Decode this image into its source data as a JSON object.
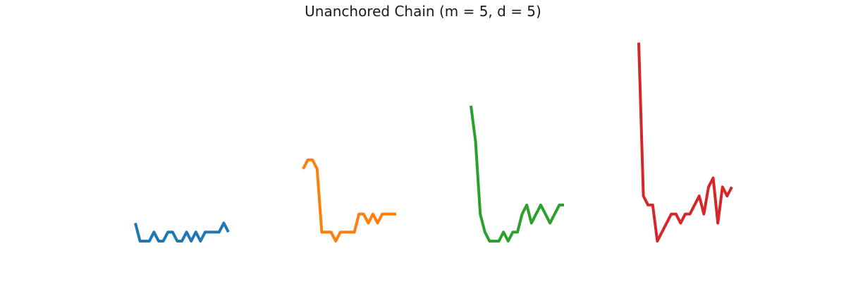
{
  "chart_data": {
    "type": "line",
    "title": "Unanchored Chain (m = 5, d = 5)",
    "xlabel": "",
    "ylabel": "",
    "axes_visible": false,
    "grid": false,
    "legend": "none",
    "series": [
      {
        "color": "#1f77b4",
        "x": [
          0,
          1,
          2,
          3,
          4,
          5,
          6,
          7,
          8,
          9,
          10,
          11,
          12,
          13,
          14,
          15,
          16,
          17,
          18,
          19,
          20
        ],
        "y": [
          2,
          0,
          0,
          0,
          1,
          0,
          0,
          1,
          1,
          0,
          0,
          1,
          0,
          1,
          0,
          1,
          1,
          1,
          1,
          2,
          1
        ]
      },
      {
        "color": "#ff7f0e",
        "x": [
          0,
          1,
          2,
          3,
          4,
          5,
          6,
          7,
          8,
          9,
          10,
          11,
          12,
          13,
          14,
          15,
          16,
          17,
          18,
          19,
          20
        ],
        "y": [
          8,
          9,
          9,
          8,
          1,
          1,
          1,
          0,
          1,
          1,
          1,
          1,
          3,
          3,
          2,
          3,
          2,
          3,
          3,
          3,
          3
        ]
      },
      {
        "color": "#2ca02c",
        "x": [
          0,
          1,
          2,
          3,
          4,
          5,
          6,
          7,
          8,
          9,
          10,
          11,
          12,
          13,
          14,
          15,
          16,
          17,
          18,
          19,
          20
        ],
        "y": [
          15,
          11,
          3,
          1,
          0,
          0,
          0,
          1,
          0,
          1,
          1,
          3,
          4,
          2,
          3,
          4,
          3,
          2,
          3,
          4,
          4
        ]
      },
      {
        "color": "#d62728",
        "x": [
          0,
          1,
          2,
          3,
          4,
          5,
          6,
          7,
          8,
          9,
          10,
          11,
          12,
          13,
          14,
          15,
          16,
          17,
          18,
          19,
          20
        ],
        "y": [
          22,
          5,
          4,
          4,
          0,
          1,
          2,
          3,
          3,
          2,
          3,
          3,
          4,
          5,
          3,
          6,
          7,
          2,
          6,
          5,
          6
        ]
      }
    ]
  }
}
